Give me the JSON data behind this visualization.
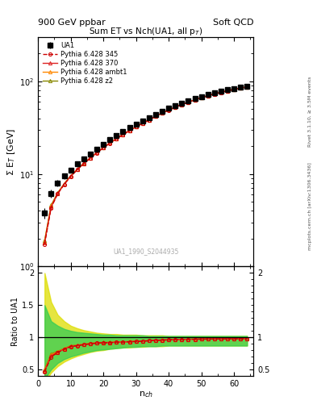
{
  "title_top_left": "900 GeV ppbar",
  "title_top_right": "Soft QCD",
  "plot_title": "Sum ET vs Nch(UA1, all p$_T$)",
  "watermark": "UA1_1990_S2044935",
  "right_label_top": "Rivet 3.1.10, ≥ 3.5M events",
  "right_label_bot": "mcplots.cern.ch [arXiv:1306.3436]",
  "ylabel_main": "Σ E$_T$ [GeV]",
  "ylabel_ratio": "Ratio to UA1",
  "xlabel": "n$_{ch}$",
  "xlim": [
    0,
    66
  ],
  "ylim_main": [
    1.0,
    300
  ],
  "ylim_ratio": [
    0.4,
    2.1
  ],
  "nch": [
    2,
    4,
    6,
    8,
    10,
    12,
    14,
    16,
    18,
    20,
    22,
    24,
    26,
    28,
    30,
    32,
    34,
    36,
    38,
    40,
    42,
    44,
    46,
    48,
    50,
    52,
    54,
    56,
    58,
    60,
    62,
    64
  ],
  "ua1_data": [
    3.8,
    6.2,
    8.0,
    9.5,
    11.0,
    12.8,
    14.6,
    16.5,
    18.6,
    21.0,
    23.5,
    26.0,
    28.8,
    31.5,
    34.5,
    37.5,
    40.5,
    44.0,
    47.5,
    51.0,
    54.5,
    58.0,
    61.5,
    65.0,
    68.5,
    72.0,
    75.0,
    78.0,
    81.0,
    84.0,
    86.5,
    89.0
  ],
  "ua1_err": [
    0.5,
    0.6,
    0.6,
    0.7,
    0.7,
    0.8,
    0.8,
    0.9,
    1.0,
    1.1,
    1.2,
    1.3,
    1.4,
    1.5,
    1.6,
    1.7,
    1.8,
    1.9,
    2.0,
    2.1,
    2.2,
    2.3,
    2.4,
    2.5,
    2.6,
    2.7,
    2.8,
    2.9,
    3.0,
    3.1,
    3.2,
    3.3
  ],
  "p345_data": [
    1.75,
    4.3,
    6.1,
    7.7,
    9.4,
    11.1,
    12.9,
    14.8,
    16.9,
    19.2,
    21.5,
    24.0,
    26.6,
    29.3,
    32.2,
    35.2,
    38.3,
    41.8,
    45.4,
    48.9,
    52.5,
    56.0,
    59.5,
    63.0,
    66.5,
    70.0,
    73.0,
    76.0,
    79.0,
    82.0,
    84.5,
    87.0
  ],
  "p370_data": [
    1.8,
    4.4,
    6.15,
    7.75,
    9.45,
    11.15,
    12.95,
    14.85,
    16.95,
    19.25,
    21.55,
    24.05,
    26.65,
    29.35,
    32.25,
    35.25,
    38.35,
    41.85,
    45.45,
    48.95,
    52.55,
    56.05,
    59.55,
    63.05,
    66.55,
    70.05,
    73.05,
    76.05,
    79.05,
    82.05,
    84.55,
    87.05
  ],
  "pambt1_data": [
    1.85,
    4.5,
    6.2,
    7.8,
    9.5,
    11.2,
    13.0,
    14.9,
    17.0,
    19.3,
    21.6,
    24.1,
    26.7,
    29.4,
    32.3,
    35.3,
    38.4,
    41.9,
    45.5,
    49.0,
    52.6,
    56.1,
    59.6,
    63.1,
    66.6,
    70.1,
    73.1,
    76.1,
    79.1,
    82.1,
    84.6,
    87.1
  ],
  "pz2_data": [
    1.9,
    4.6,
    6.25,
    7.85,
    9.55,
    11.25,
    13.05,
    14.95,
    17.05,
    19.35,
    21.65,
    24.15,
    26.75,
    29.45,
    32.35,
    35.35,
    38.45,
    41.95,
    45.55,
    49.05,
    52.65,
    56.15,
    59.65,
    63.15,
    66.65,
    70.15,
    73.15,
    76.15,
    79.15,
    82.15,
    84.65,
    87.15
  ],
  "color_345": "#cc0000",
  "color_370": "#dd2222",
  "color_ambt1": "#ff8800",
  "color_z2": "#888800",
  "color_ua1": "#000000",
  "band_z2_color": "#dddd00",
  "band_ambt1_color": "#33cc55",
  "band_z2_upper": [
    2.0,
    1.55,
    1.35,
    1.25,
    1.18,
    1.14,
    1.11,
    1.09,
    1.07,
    1.06,
    1.05,
    1.05,
    1.04,
    1.04,
    1.04,
    1.03,
    1.03,
    1.03,
    1.03,
    1.02,
    1.02,
    1.02,
    1.02,
    1.02,
    1.02,
    1.02,
    1.02,
    1.02,
    1.02,
    1.02,
    1.02,
    1.02
  ],
  "band_z2_lower": [
    0.3,
    0.45,
    0.55,
    0.62,
    0.67,
    0.71,
    0.74,
    0.77,
    0.79,
    0.8,
    0.82,
    0.83,
    0.84,
    0.84,
    0.85,
    0.85,
    0.86,
    0.86,
    0.86,
    0.87,
    0.87,
    0.87,
    0.87,
    0.87,
    0.87,
    0.87,
    0.87,
    0.87,
    0.87,
    0.87,
    0.87,
    0.87
  ],
  "band_ambt1_upper": [
    1.5,
    1.25,
    1.18,
    1.13,
    1.1,
    1.08,
    1.07,
    1.06,
    1.05,
    1.04,
    1.04,
    1.03,
    1.03,
    1.03,
    1.03,
    1.03,
    1.02,
    1.02,
    1.02,
    1.02,
    1.02,
    1.02,
    1.02,
    1.02,
    1.02,
    1.02,
    1.02,
    1.02,
    1.02,
    1.02,
    1.02,
    1.02
  ],
  "band_ambt1_lower": [
    0.35,
    0.5,
    0.6,
    0.66,
    0.7,
    0.73,
    0.76,
    0.78,
    0.8,
    0.81,
    0.82,
    0.83,
    0.84,
    0.85,
    0.85,
    0.86,
    0.86,
    0.86,
    0.87,
    0.87,
    0.87,
    0.87,
    0.87,
    0.87,
    0.87,
    0.87,
    0.87,
    0.87,
    0.87,
    0.87,
    0.87,
    0.87
  ]
}
